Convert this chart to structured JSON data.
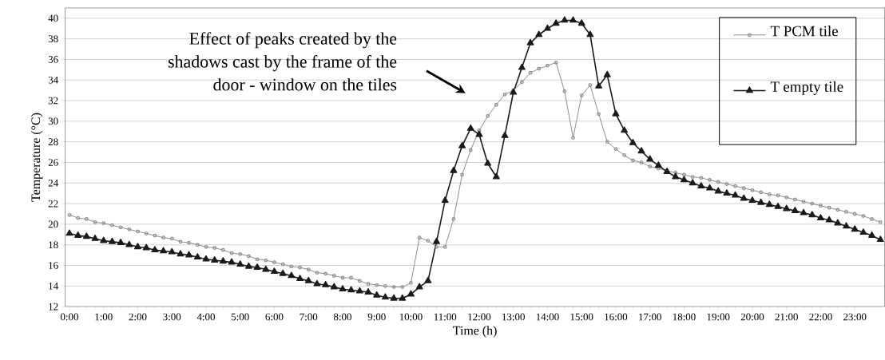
{
  "chart_data": {
    "type": "line",
    "xlabel": "Time (h)",
    "ylabel": "Temperature (°C)",
    "annotations": [
      "Effect of peaks created by the shadows cast by the frame of the door - window on the tiles"
    ],
    "x": [
      0,
      0.25,
      0.5,
      0.75,
      1,
      1.25,
      1.5,
      1.75,
      2,
      2.25,
      2.5,
      2.75,
      3,
      3.25,
      3.5,
      3.75,
      4,
      4.25,
      4.5,
      4.75,
      5,
      5.25,
      5.5,
      5.75,
      6,
      6.25,
      6.5,
      6.75,
      7,
      7.25,
      7.5,
      7.75,
      8,
      8.25,
      8.5,
      8.75,
      9,
      9.25,
      9.5,
      9.75,
      10,
      10.25,
      10.5,
      10.75,
      11,
      11.25,
      11.5,
      11.75,
      12,
      12.25,
      12.5,
      12.75,
      13,
      13.25,
      13.5,
      13.75,
      14,
      14.25,
      14.5,
      14.75,
      15,
      15.25,
      15.5,
      15.75,
      16,
      16.25,
      16.5,
      16.75,
      17,
      17.25,
      17.5,
      17.75,
      18,
      18.25,
      18.5,
      18.75,
      19,
      19.25,
      19.5,
      19.75,
      20,
      20.25,
      20.5,
      20.75,
      21,
      21.25,
      21.5,
      21.75,
      22,
      22.25,
      22.5,
      22.75,
      23,
      23.25,
      23.5,
      23.75
    ],
    "series": [
      {
        "name": "T PCM tile",
        "color": "#8c8c8c",
        "marker": "circle",
        "values": [
          20.9,
          20.6,
          20.5,
          20.2,
          20.1,
          19.9,
          19.7,
          19.5,
          19.3,
          19.1,
          18.9,
          18.7,
          18.6,
          18.3,
          18.2,
          18.0,
          17.8,
          17.7,
          17.5,
          17.2,
          17.1,
          16.9,
          16.6,
          16.5,
          16.3,
          16.1,
          15.9,
          15.8,
          15.6,
          15.3,
          15.2,
          15.0,
          14.8,
          14.8,
          14.5,
          14.2,
          14.1,
          14.0,
          13.9,
          13.9,
          14.3,
          18.7,
          18.4,
          17.8,
          17.8,
          20.5,
          24.8,
          27.2,
          29.1,
          30.5,
          31.6,
          32.6,
          33.0,
          33.8,
          34.7,
          35.1,
          35.4,
          35.7,
          32.9,
          28.4,
          32.5,
          33.5,
          30.7,
          28.0,
          27.3,
          26.7,
          26.2,
          26.0,
          25.6,
          25.4,
          25.2,
          25.0,
          24.8,
          24.6,
          24.5,
          24.3,
          24.1,
          23.9,
          23.7,
          23.5,
          23.3,
          23.1,
          22.9,
          22.8,
          22.6,
          22.4,
          22.2,
          22.0,
          21.8,
          21.6,
          21.4,
          21.2,
          21.0,
          20.8,
          20.5,
          20.2
        ]
      },
      {
        "name": "T empty tile",
        "color": "#1a1a1a",
        "marker": "triangle",
        "values": [
          19.1,
          18.9,
          18.8,
          18.6,
          18.4,
          18.3,
          18.2,
          18.0,
          17.8,
          17.7,
          17.5,
          17.4,
          17.3,
          17.1,
          17.0,
          16.8,
          16.6,
          16.5,
          16.4,
          16.3,
          16.1,
          15.9,
          15.8,
          15.6,
          15.4,
          15.2,
          15.0,
          14.7,
          14.5,
          14.2,
          14.1,
          13.9,
          13.7,
          13.6,
          13.5,
          13.4,
          13.1,
          12.9,
          12.8,
          12.8,
          13.2,
          13.9,
          14.5,
          18.3,
          22.3,
          25.2,
          27.6,
          29.3,
          28.7,
          25.9,
          24.6,
          28.6,
          32.8,
          35.2,
          37.6,
          38.4,
          39.0,
          39.5,
          39.8,
          39.8,
          39.5,
          38.4,
          33.4,
          34.5,
          30.7,
          29.1,
          27.9,
          27.1,
          26.3,
          25.7,
          25.1,
          24.6,
          24.3,
          24.0,
          23.7,
          23.5,
          23.2,
          23.0,
          22.8,
          22.5,
          22.3,
          22.1,
          21.9,
          21.7,
          21.5,
          21.3,
          21.1,
          20.9,
          20.6,
          20.4,
          20.1,
          19.8,
          19.5,
          19.2,
          18.9,
          18.5
        ]
      }
    ],
    "xlim": [
      -0.125,
      23.875
    ],
    "ylim": [
      12,
      41
    ],
    "xticks": [
      {
        "value": 0,
        "label": "0:00"
      },
      {
        "value": 1,
        "label": "1:00"
      },
      {
        "value": 2,
        "label": "2:00"
      },
      {
        "value": 3,
        "label": "3:00"
      },
      {
        "value": 4,
        "label": "4:00"
      },
      {
        "value": 5,
        "label": "5:00"
      },
      {
        "value": 6,
        "label": "6:00"
      },
      {
        "value": 7,
        "label": "7:00"
      },
      {
        "value": 8,
        "label": "8:00"
      },
      {
        "value": 9,
        "label": "9:00"
      },
      {
        "value": 10,
        "label": "10:00"
      },
      {
        "value": 11,
        "label": "11:00"
      },
      {
        "value": 12,
        "label": "12:00"
      },
      {
        "value": 13,
        "label": "13:00"
      },
      {
        "value": 14,
        "label": "14:00"
      },
      {
        "value": 15,
        "label": "15:00"
      },
      {
        "value": 16,
        "label": "16:00"
      },
      {
        "value": 17,
        "label": "17:00"
      },
      {
        "value": 18,
        "label": "18:00"
      },
      {
        "value": 19,
        "label": "19:00"
      },
      {
        "value": 20,
        "label": "20:00"
      },
      {
        "value": 21,
        "label": "21:00"
      },
      {
        "value": 22,
        "label": "22:00"
      },
      {
        "value": 23,
        "label": "23:00"
      }
    ],
    "yticks": [
      12,
      14,
      16,
      18,
      20,
      22,
      24,
      26,
      28,
      30,
      32,
      34,
      36,
      38,
      40
    ],
    "grid": "y",
    "legend": "top right"
  }
}
